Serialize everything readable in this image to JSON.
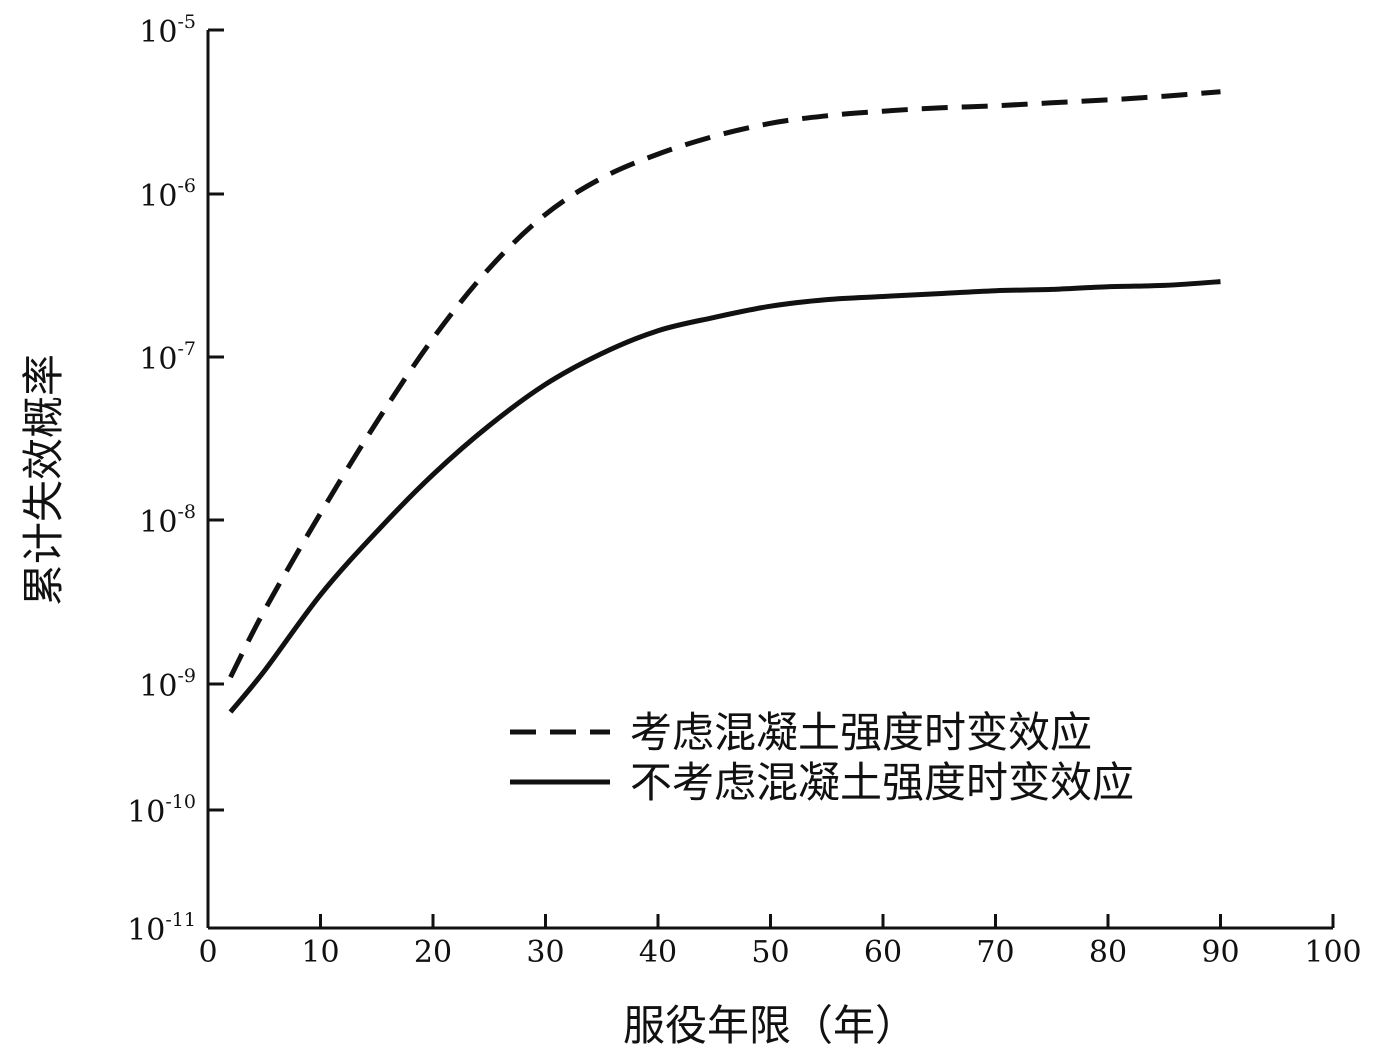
{
  "chart_data": {
    "type": "line",
    "title": "",
    "xlabel": "服役年限（年）",
    "ylabel": "累计失效概率",
    "xlim": [
      0,
      100
    ],
    "ylim": [
      1e-11,
      1e-05
    ],
    "yscale": "log",
    "x_ticks": [
      "0",
      "10",
      "20",
      "30",
      "40",
      "50",
      "60",
      "70",
      "80",
      "90",
      "100"
    ],
    "y_ticks": [
      {
        "base": "10",
        "exp": "-11",
        "value": 1e-11
      },
      {
        "base": "10",
        "exp": "-10",
        "value": 1e-10
      },
      {
        "base": "10",
        "exp": "-9",
        "value": 1e-09
      },
      {
        "base": "10",
        "exp": "-8",
        "value": 1e-08
      },
      {
        "base": "10",
        "exp": "-7",
        "value": 1e-07
      },
      {
        "base": "10",
        "exp": "-6",
        "value": 1e-06
      },
      {
        "base": "10",
        "exp": "-5",
        "value": 1e-05
      }
    ],
    "grid": false,
    "legend_position": "bottom-right",
    "series": [
      {
        "name": "考虑混凝土强度时变效应",
        "style": "dashed",
        "color": "#111111",
        "x": [
          2,
          5,
          10,
          15,
          20,
          25,
          30,
          35,
          40,
          45,
          50,
          55,
          60,
          65,
          70,
          75,
          80,
          85,
          90
        ],
        "y": [
          1.1e-09,
          2.8e-09,
          1.1e-08,
          4e-08,
          1.3e-07,
          3.5e-07,
          7.5e-07,
          1.25e-06,
          1.75e-06,
          2.25e-06,
          2.7e-06,
          3e-06,
          3.2e-06,
          3.35e-06,
          3.45e-06,
          3.6e-06,
          3.75e-06,
          3.95e-06,
          4.2e-06
        ]
      },
      {
        "name": "不考虑混凝土强度时变效应",
        "style": "solid",
        "color": "#111111",
        "x": [
          2,
          5,
          10,
          15,
          20,
          25,
          30,
          35,
          40,
          45,
          50,
          55,
          60,
          65,
          70,
          75,
          80,
          85,
          90
        ],
        "y": [
          6e-10,
          1.2e-09,
          3.5e-09,
          8.5e-09,
          1.9e-08,
          3.8e-08,
          6.8e-08,
          1.05e-07,
          1.45e-07,
          1.75e-07,
          2.05e-07,
          2.25e-07,
          2.35e-07,
          2.45e-07,
          2.55e-07,
          2.6e-07,
          2.7e-07,
          2.75e-07,
          2.9e-07
        ]
      }
    ]
  }
}
